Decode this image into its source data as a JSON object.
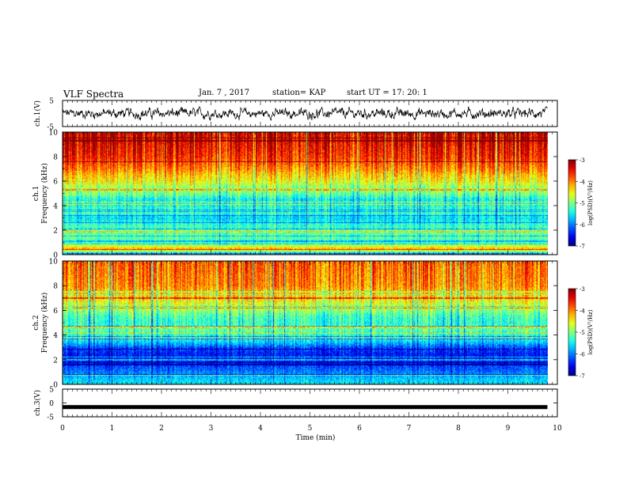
{
  "header": {
    "title": "VLF Spectra",
    "date": "Jan. 7 , 2017",
    "station": "station= KAP",
    "start_ut": "start  UT  =   17: 20: 1"
  },
  "chart_data": [
    {
      "type": "line",
      "panel": "ch1-waveform",
      "ylabel": "ch.1(V)",
      "ylim": [
        -5,
        5
      ],
      "ytick_labels": [
        "5",
        "-5"
      ],
      "xlim": [
        0,
        10
      ],
      "x_extent_min": 9.8,
      "color": "#000000",
      "description_values": "noisy trace near 0 V, range about -2 to +2 V"
    },
    {
      "type": "heatmap",
      "panel": "ch1-spectrogram",
      "ylabel_line1": "ch.1",
      "ylabel_line2": "Frequency (kHz)",
      "xlim": [
        0,
        10
      ],
      "ylim": [
        0,
        10
      ],
      "ytick_labels": [
        "0",
        "2",
        "4",
        "6",
        "8",
        "10"
      ],
      "x_extent_min": 9.8,
      "colorbar": {
        "label": "log(PSD)(V²/Hz)",
        "range": [
          -7,
          -3
        ],
        "tick_labels": [
          "-3",
          "-4",
          "-5",
          "-6",
          "-7"
        ]
      },
      "profile_by_frequency_khz": [
        [
          0.0,
          -6.0
        ],
        [
          0.5,
          -4.2
        ],
        [
          1.0,
          -5.2
        ],
        [
          1.5,
          -5.1
        ],
        [
          2.0,
          -5.2
        ],
        [
          2.5,
          -5.3
        ],
        [
          3.0,
          -5.6
        ],
        [
          3.5,
          -5.2
        ],
        [
          4.0,
          -5.4
        ],
        [
          4.5,
          -5.5
        ],
        [
          5.0,
          -5.0
        ],
        [
          5.5,
          -4.9
        ],
        [
          6.0,
          -4.5
        ],
        [
          6.5,
          -4.3
        ],
        [
          7.0,
          -4.0
        ],
        [
          8.0,
          -3.6
        ],
        [
          9.0,
          -3.4
        ],
        [
          10.0,
          -3.3
        ]
      ]
    },
    {
      "type": "heatmap",
      "panel": "ch2-spectrogram",
      "ylabel_line1": "ch.2",
      "ylabel_line2": "Frequency (kHz)",
      "xlim": [
        0,
        10
      ],
      "ylim": [
        0,
        10
      ],
      "ytick_labels": [
        "0",
        "2",
        "4",
        "6",
        "8",
        "10"
      ],
      "x_extent_min": 9.8,
      "colorbar": {
        "label": "log(PSD)(V²/Hz)",
        "range": [
          -7,
          -3
        ],
        "tick_labels": [
          "-3",
          "-4",
          "-5",
          "-6",
          "-7"
        ]
      },
      "profile_by_frequency_khz": [
        [
          0.0,
          -5.5
        ],
        [
          0.5,
          -5.7
        ],
        [
          1.0,
          -6.0
        ],
        [
          1.5,
          -6.2
        ],
        [
          2.0,
          -6.5
        ],
        [
          2.5,
          -6.4
        ],
        [
          3.0,
          -6.2
        ],
        [
          3.5,
          -5.6
        ],
        [
          4.0,
          -5.3
        ],
        [
          4.5,
          -5.1
        ],
        [
          5.0,
          -5.3
        ],
        [
          5.5,
          -5.2
        ],
        [
          6.0,
          -4.9
        ],
        [
          7.0,
          -4.4
        ],
        [
          8.0,
          -4.0
        ],
        [
          9.0,
          -3.9
        ],
        [
          10.0,
          -3.8
        ]
      ]
    },
    {
      "type": "line",
      "panel": "ch3-waveform",
      "ylabel": "ch.3(V)",
      "ylim": [
        -5,
        5
      ],
      "ytick_labels": [
        "5",
        "0",
        "-5"
      ],
      "xlim": [
        0,
        10
      ],
      "x_extent_min": 9.8,
      "color": "#000000",
      "description_values": "flat trace at about -1.5 V"
    }
  ],
  "x_axis": {
    "label": "Time (min)",
    "tick_labels": [
      "0",
      "1",
      "2",
      "3",
      "4",
      "5",
      "6",
      "7",
      "8",
      "9",
      "10"
    ]
  }
}
